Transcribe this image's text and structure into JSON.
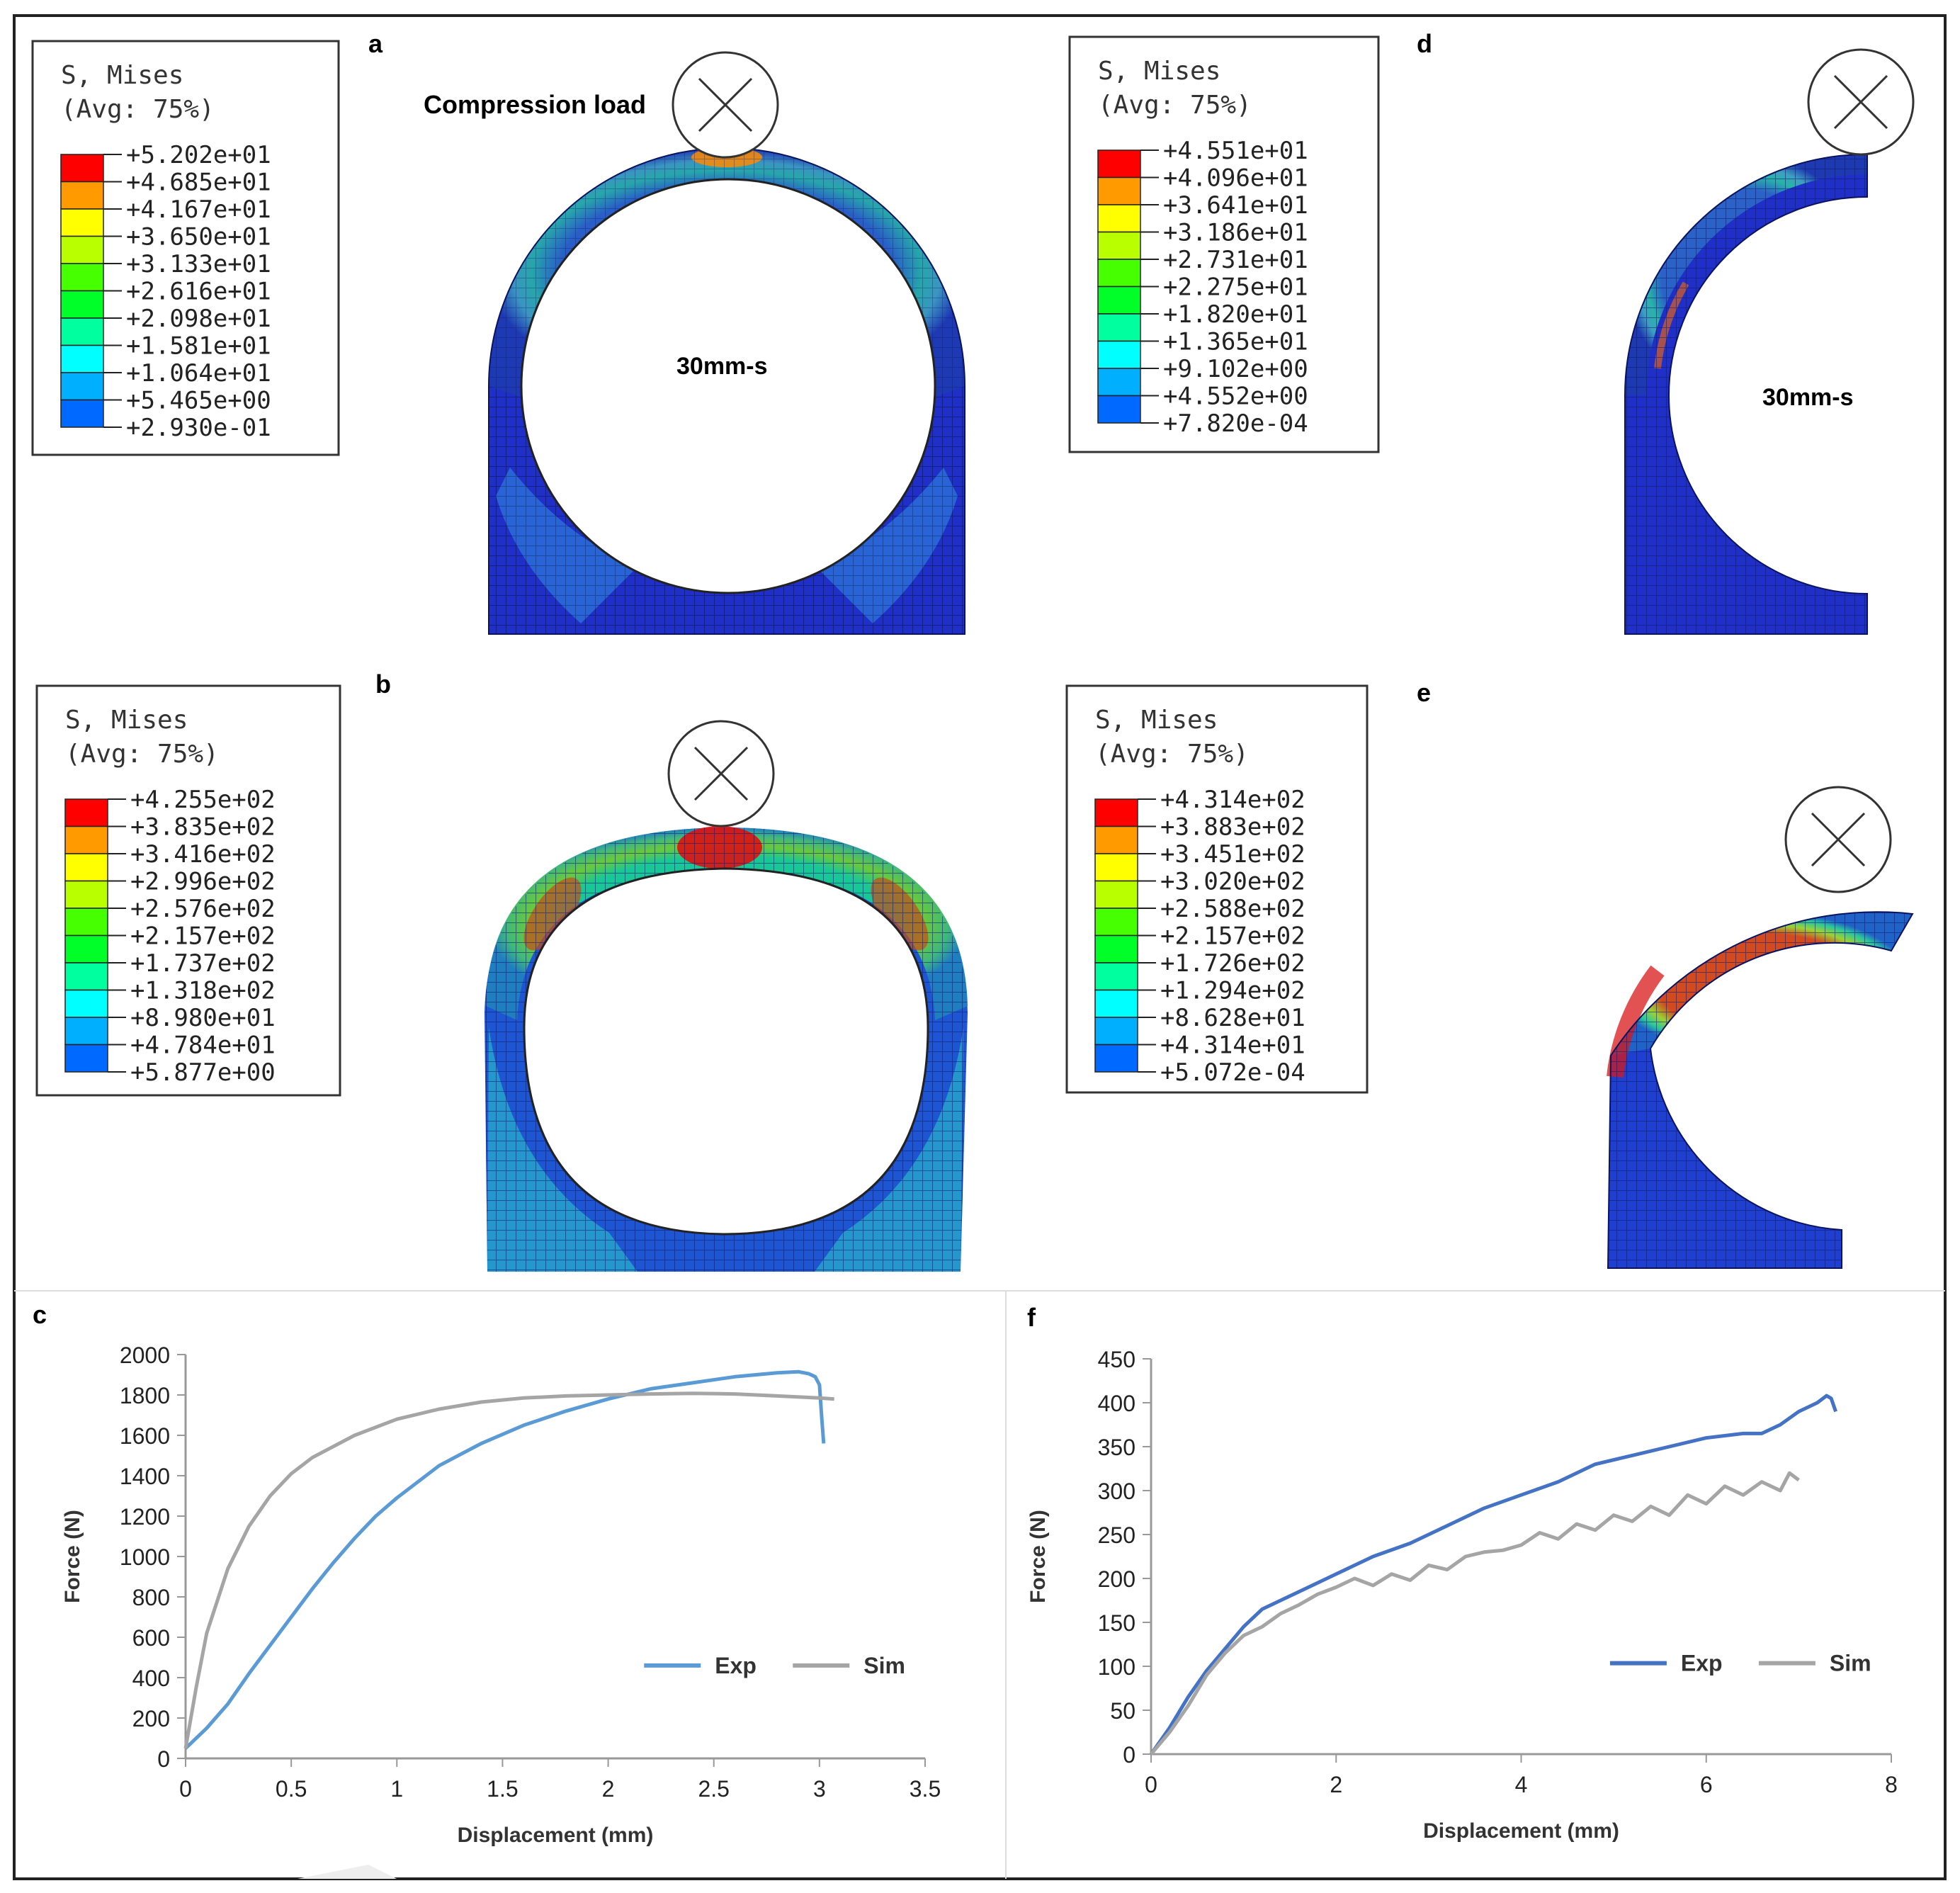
{
  "panel_labels": {
    "a": "a",
    "b": "b",
    "c": "c",
    "d": "d",
    "e": "e",
    "f": "f"
  },
  "colors": {
    "contour": [
      "#0000ff",
      "#0069ff",
      "#00b0ff",
      "#00ffff",
      "#00ff9f",
      "#00ff28",
      "#46ff00",
      "#b9ff00",
      "#ffff00",
      "#ff9b00",
      "#ff0000"
    ],
    "exp_c": "#5b9bd5",
    "sim": "#a5a5a5",
    "exp_f": "#4472c4",
    "mesh_dark": "#0a1a8c"
  },
  "legends": {
    "a": {
      "title": "S, Mises",
      "avg": "(Avg: 75%)",
      "values": [
        "+5.202e+01",
        "+4.685e+01",
        "+4.167e+01",
        "+3.650e+01",
        "+3.133e+01",
        "+2.616e+01",
        "+2.098e+01",
        "+1.581e+01",
        "+1.064e+01",
        "+5.465e+00",
        "+2.930e-01"
      ]
    },
    "b": {
      "title": "S, Mises",
      "avg": "(Avg: 75%)",
      "values": [
        "+4.255e+02",
        "+3.835e+02",
        "+3.416e+02",
        "+2.996e+02",
        "+2.576e+02",
        "+2.157e+02",
        "+1.737e+02",
        "+1.318e+02",
        "+8.980e+01",
        "+4.784e+01",
        "+5.877e+00"
      ]
    },
    "d": {
      "title": "S, Mises",
      "avg": "(Avg: 75%)",
      "values": [
        "+4.551e+01",
        "+4.096e+01",
        "+3.641e+01",
        "+3.186e+01",
        "+2.731e+01",
        "+2.275e+01",
        "+1.820e+01",
        "+1.365e+01",
        "+9.102e+00",
        "+4.552e+00",
        "+7.820e-04"
      ]
    },
    "e": {
      "title": "S, Mises",
      "avg": "(Avg: 75%)",
      "values": [
        "+4.314e+02",
        "+3.883e+02",
        "+3.451e+02",
        "+3.020e+02",
        "+2.588e+02",
        "+2.157e+02",
        "+1.726e+02",
        "+1.294e+02",
        "+8.628e+01",
        "+4.314e+01",
        "+5.072e-04"
      ]
    }
  },
  "annotations": {
    "compression_load": "Compression load",
    "specimen_a": "30mm-s",
    "specimen_d": "30mm-s"
  },
  "chart_data": [
    {
      "id": "c",
      "type": "line",
      "xlabel": "Displacement  (mm)",
      "ylabel": "Force (N)",
      "xlim": [
        0,
        3.5
      ],
      "ylim": [
        0,
        2000
      ],
      "xticks": [
        0,
        0.5,
        1,
        1.5,
        2,
        2.5,
        3,
        3.5
      ],
      "xtick_labels": [
        "0",
        "0.5",
        "1",
        "1.5",
        "2",
        "2.5",
        "3",
        "3.5"
      ],
      "yticks": [
        0,
        200,
        400,
        600,
        800,
        1000,
        1200,
        1400,
        1600,
        1800,
        2000
      ],
      "ytick_labels": [
        "0",
        "200",
        "400",
        "600",
        "800",
        "1000",
        "1200",
        "1400",
        "1600",
        "1800",
        "2000"
      ],
      "grid": false,
      "legend_position": "bottom-right",
      "series": [
        {
          "name": "Exp",
          "color": "#5b9bd5",
          "x": [
            0,
            0.1,
            0.2,
            0.3,
            0.4,
            0.5,
            0.6,
            0.7,
            0.8,
            0.9,
            1.0,
            1.2,
            1.4,
            1.6,
            1.8,
            2.0,
            2.2,
            2.4,
            2.6,
            2.8,
            2.9,
            2.95,
            2.98,
            3.0,
            3.01,
            3.02
          ],
          "y": [
            50,
            150,
            270,
            420,
            560,
            700,
            840,
            970,
            1090,
            1200,
            1290,
            1450,
            1560,
            1650,
            1720,
            1780,
            1830,
            1860,
            1890,
            1910,
            1915,
            1905,
            1890,
            1850,
            1700,
            1560
          ]
        },
        {
          "name": "Sim",
          "color": "#a5a5a5",
          "x": [
            0,
            0.05,
            0.1,
            0.2,
            0.3,
            0.4,
            0.5,
            0.6,
            0.8,
            1.0,
            1.2,
            1.4,
            1.6,
            1.8,
            2.0,
            2.2,
            2.4,
            2.6,
            2.8,
            3.0,
            3.07
          ],
          "y": [
            50,
            350,
            620,
            940,
            1150,
            1300,
            1410,
            1490,
            1600,
            1680,
            1730,
            1765,
            1785,
            1795,
            1800,
            1805,
            1808,
            1805,
            1795,
            1785,
            1780
          ]
        }
      ]
    },
    {
      "id": "f",
      "type": "line",
      "xlabel": "Displacement  (mm)",
      "ylabel": "Force (N)",
      "xlim": [
        0,
        8
      ],
      "ylim": [
        0,
        450
      ],
      "xticks": [
        0,
        2,
        4,
        6,
        8
      ],
      "xtick_labels": [
        "0",
        "2",
        "4",
        "6",
        "8"
      ],
      "yticks": [
        0,
        50,
        100,
        150,
        200,
        250,
        300,
        350,
        400,
        450
      ],
      "ytick_labels": [
        "0",
        "50",
        "100",
        "150",
        "200",
        "250",
        "300",
        "350",
        "400",
        "450"
      ],
      "grid": false,
      "legend_position": "bottom-right",
      "series": [
        {
          "name": "Exp",
          "color": "#4472c4",
          "x": [
            0,
            0.2,
            0.4,
            0.6,
            0.8,
            1.0,
            1.2,
            1.4,
            1.6,
            1.8,
            2.0,
            2.4,
            2.8,
            3.2,
            3.6,
            4.0,
            4.4,
            4.8,
            5.2,
            5.6,
            6.0,
            6.4,
            6.6,
            6.8,
            7.0,
            7.2,
            7.3,
            7.35,
            7.4
          ],
          "y": [
            0,
            30,
            65,
            95,
            120,
            145,
            165,
            175,
            185,
            195,
            205,
            225,
            240,
            260,
            280,
            295,
            310,
            330,
            340,
            350,
            360,
            365,
            365,
            375,
            390,
            400,
            408,
            405,
            390
          ]
        },
        {
          "name": "Sim",
          "color": "#a5a5a5",
          "x": [
            0,
            0.2,
            0.4,
            0.6,
            0.8,
            1.0,
            1.2,
            1.4,
            1.6,
            1.8,
            2.0,
            2.2,
            2.4,
            2.6,
            2.8,
            3.0,
            3.2,
            3.4,
            3.6,
            3.8,
            4.0,
            4.2,
            4.4,
            4.6,
            4.8,
            5.0,
            5.2,
            5.4,
            5.6,
            5.8,
            6.0,
            6.2,
            6.4,
            6.6,
            6.8,
            6.9,
            7.0
          ],
          "y": [
            0,
            25,
            55,
            90,
            115,
            135,
            145,
            160,
            170,
            182,
            190,
            200,
            192,
            205,
            198,
            215,
            210,
            225,
            230,
            232,
            238,
            252,
            245,
            262,
            255,
            272,
            265,
            282,
            272,
            295,
            285,
            305,
            295,
            310,
            300,
            320,
            312
          ]
        }
      ]
    }
  ]
}
